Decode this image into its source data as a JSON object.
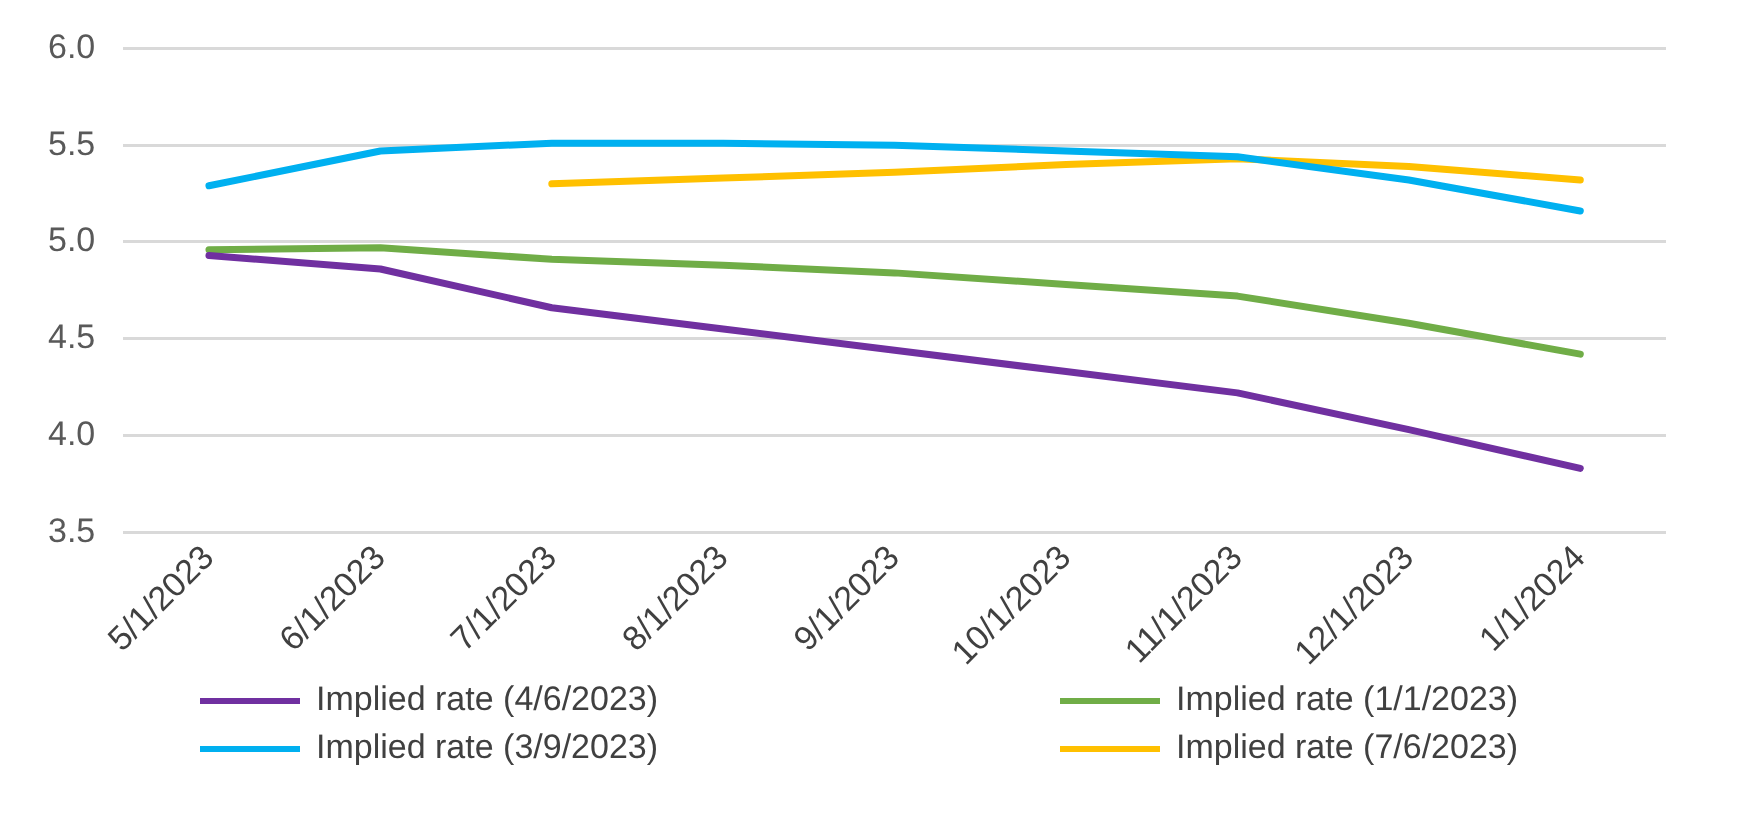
{
  "chart_data": {
    "type": "line",
    "categories": [
      "5/1/2023",
      "6/1/2023",
      "7/1/2023",
      "8/1/2023",
      "9/1/2023",
      "10/1/2023",
      "11/1/2023",
      "12/1/2023",
      "1/1/2024"
    ],
    "series": [
      {
        "name": "Implied rate (4/6/2023)",
        "color": "#7030a0",
        "values": [
          4.93,
          4.86,
          4.66,
          4.55,
          4.44,
          4.33,
          4.22,
          4.03,
          3.83
        ]
      },
      {
        "name": "Implied rate (1/1/2023)",
        "color": "#70ad47",
        "values": [
          4.96,
          4.97,
          4.91,
          4.88,
          4.84,
          4.78,
          4.72,
          4.58,
          4.42
        ]
      },
      {
        "name": "Implied rate (3/9/2023)",
        "color": "#00b0f0",
        "values": [
          5.29,
          5.47,
          5.51,
          5.51,
          5.5,
          5.47,
          5.44,
          5.32,
          5.16
        ]
      },
      {
        "name": "Implied rate (7/6/2023)",
        "color": "#ffc000",
        "values": [
          null,
          null,
          5.3,
          5.33,
          5.36,
          5.4,
          5.43,
          5.39,
          5.32
        ]
      }
    ],
    "ylim": [
      3.5,
      6.0
    ],
    "yticks": [
      {
        "value": 3.5,
        "label": "3.5"
      },
      {
        "value": 4,
        "label": "4.0"
      },
      {
        "value": 4.5,
        "label": "4.5"
      },
      {
        "value": 5,
        "label": "5.0"
      },
      {
        "value": 5.5,
        "label": "5.5"
      },
      {
        "value": 6,
        "label": "6.0"
      }
    ],
    "grid": "y",
    "legend": "bottom",
    "marker": "none",
    "line_style": "solid"
  }
}
